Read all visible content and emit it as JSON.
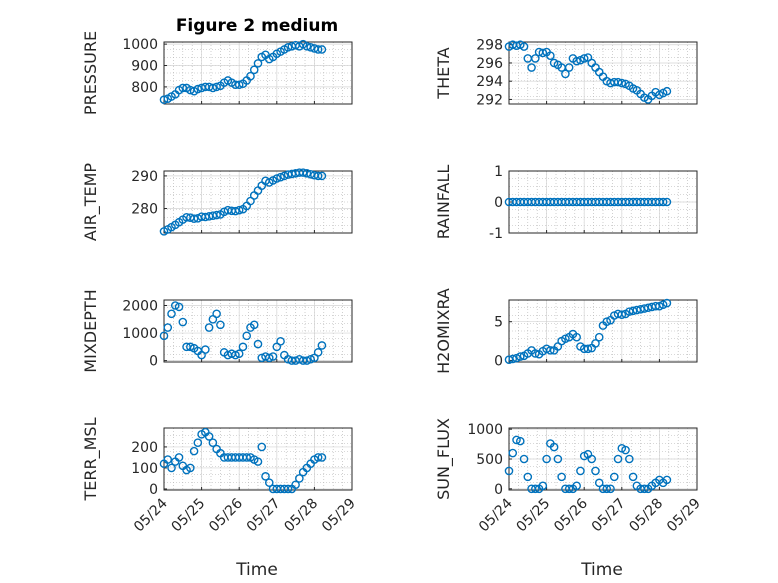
{
  "figure": {
    "title": "Figure 2 medium",
    "xlabel": "Time",
    "marker_color": "#0072BD",
    "grid": true
  },
  "chart_data": [
    {
      "type": "scatter",
      "ylabel": "PRESSURE",
      "ylim": [
        720,
        1010
      ],
      "yticks": [
        "800",
        "900",
        "1000"
      ],
      "ytick_values": [
        800,
        900,
        1000
      ],
      "xlim": [
        "05/24",
        "05/29"
      ],
      "xtick_labels": [],
      "x": [
        24.0,
        24.1,
        24.2,
        24.3,
        24.4,
        24.5,
        24.6,
        24.7,
        24.8,
        24.9,
        25.0,
        25.1,
        25.2,
        25.3,
        25.4,
        25.5,
        25.6,
        25.7,
        25.8,
        25.9,
        26.0,
        26.1,
        26.2,
        26.3,
        26.4,
        26.5,
        26.6,
        26.7,
        26.8,
        26.9,
        27.0,
        27.1,
        27.2,
        27.3,
        27.4,
        27.5,
        27.6,
        27.7,
        27.8,
        27.9,
        28.0,
        28.1,
        28.2
      ],
      "y": [
        740,
        745,
        755,
        765,
        785,
        795,
        795,
        785,
        780,
        790,
        795,
        800,
        800,
        795,
        800,
        805,
        820,
        830,
        820,
        810,
        810,
        815,
        830,
        850,
        880,
        910,
        940,
        950,
        930,
        940,
        955,
        965,
        975,
        985,
        990,
        995,
        990,
        1000,
        990,
        985,
        980,
        975,
        975
      ]
    },
    {
      "type": "scatter",
      "ylabel": "THETA",
      "ylim": [
        291.5,
        298.3
      ],
      "yticks": [
        "292",
        "294",
        "296",
        "298"
      ],
      "ytick_values": [
        292,
        294,
        296,
        298
      ],
      "xlim": [
        "05/24",
        "05/29"
      ],
      "xtick_labels": [],
      "x": [
        24.0,
        24.1,
        24.2,
        24.3,
        24.4,
        24.5,
        24.6,
        24.7,
        24.8,
        24.9,
        25.0,
        25.1,
        25.2,
        25.3,
        25.4,
        25.5,
        25.6,
        25.7,
        25.8,
        25.9,
        26.0,
        26.1,
        26.2,
        26.3,
        26.4,
        26.5,
        26.6,
        26.7,
        26.8,
        26.9,
        27.0,
        27.1,
        27.2,
        27.3,
        27.4,
        27.5,
        27.6,
        27.7,
        27.8,
        27.9,
        28.0,
        28.1,
        28.2
      ],
      "y": [
        297.8,
        298.0,
        297.9,
        298.0,
        297.8,
        296.5,
        295.5,
        296.5,
        297.2,
        297.1,
        297.2,
        296.8,
        296.0,
        295.8,
        295.5,
        294.8,
        295.5,
        296.5,
        296.2,
        296.3,
        296.5,
        296.6,
        296.0,
        295.5,
        295.0,
        294.5,
        294.0,
        293.8,
        293.9,
        293.9,
        293.8,
        293.7,
        293.5,
        293.2,
        293.0,
        292.6,
        292.2,
        292.0,
        292.4,
        292.8,
        292.5,
        292.7,
        292.9
      ]
    },
    {
      "type": "scatter",
      "ylabel": "AIR_TEMP",
      "ylim": [
        272.5,
        291.5
      ],
      "yticks": [
        "280",
        "290"
      ],
      "ytick_values": [
        280,
        290
      ],
      "xlim": [
        "05/24",
        "05/29"
      ],
      "xtick_labels": [],
      "x": [
        24.0,
        24.1,
        24.2,
        24.3,
        24.4,
        24.5,
        24.6,
        24.7,
        24.8,
        24.9,
        25.0,
        25.1,
        25.2,
        25.3,
        25.4,
        25.5,
        25.6,
        25.7,
        25.8,
        25.9,
        26.0,
        26.1,
        26.2,
        26.3,
        26.4,
        26.5,
        26.6,
        26.7,
        26.8,
        26.9,
        27.0,
        27.1,
        27.2,
        27.3,
        27.4,
        27.5,
        27.6,
        27.7,
        27.8,
        27.9,
        28.0,
        28.1,
        28.2
      ],
      "y": [
        273.0,
        273.6,
        274.3,
        275.0,
        275.8,
        276.6,
        277.3,
        277.2,
        276.9,
        277.0,
        277.5,
        277.4,
        277.6,
        277.8,
        278.0,
        278.2,
        279.0,
        279.5,
        279.3,
        279.2,
        279.5,
        279.8,
        280.8,
        282.3,
        284.0,
        285.5,
        287.0,
        288.5,
        288.0,
        288.6,
        289.2,
        289.6,
        290.0,
        290.4,
        290.6,
        290.8,
        291.0,
        291.0,
        290.8,
        290.5,
        290.2,
        290.0,
        290.0
      ]
    },
    {
      "type": "scatter",
      "ylabel": "RAINFALL",
      "ylim": [
        -1,
        1
      ],
      "yticks": [
        "-1",
        "0",
        "1"
      ],
      "ytick_values": [
        -1,
        0,
        1
      ],
      "xlim": [
        "05/24",
        "05/29"
      ],
      "xtick_labels": [],
      "x": [
        24.0,
        24.1,
        24.2,
        24.3,
        24.4,
        24.5,
        24.6,
        24.7,
        24.8,
        24.9,
        25.0,
        25.1,
        25.2,
        25.3,
        25.4,
        25.5,
        25.6,
        25.7,
        25.8,
        25.9,
        26.0,
        26.1,
        26.2,
        26.3,
        26.4,
        26.5,
        26.6,
        26.7,
        26.8,
        26.9,
        27.0,
        27.1,
        27.2,
        27.3,
        27.4,
        27.5,
        27.6,
        27.7,
        27.8,
        27.9,
        28.0,
        28.1,
        28.2
      ],
      "y": [
        0,
        0,
        0,
        0,
        0,
        0,
        0,
        0,
        0,
        0,
        0,
        0,
        0,
        0,
        0,
        0,
        0,
        0,
        0,
        0,
        0,
        0,
        0,
        0,
        0,
        0,
        0,
        0,
        0,
        0,
        0,
        0,
        0,
        0,
        0,
        0,
        0,
        0,
        0,
        0,
        0,
        0,
        0
      ]
    },
    {
      "type": "scatter",
      "ylabel": "MIXDEPTH",
      "ylim": [
        -50,
        2200
      ],
      "yticks": [
        "0",
        "1000",
        "2000"
      ],
      "ytick_values": [
        0,
        1000,
        2000
      ],
      "xlim": [
        "05/24",
        "05/29"
      ],
      "xtick_labels": [],
      "x": [
        24.0,
        24.1,
        24.2,
        24.3,
        24.4,
        24.5,
        24.6,
        24.7,
        24.8,
        24.9,
        25.0,
        25.1,
        25.2,
        25.3,
        25.4,
        25.5,
        25.6,
        25.7,
        25.8,
        25.9,
        26.0,
        26.1,
        26.2,
        26.3,
        26.4,
        26.5,
        26.6,
        26.7,
        26.8,
        26.9,
        27.0,
        27.1,
        27.2,
        27.3,
        27.4,
        27.5,
        27.6,
        27.7,
        27.8,
        27.9,
        28.0,
        28.1,
        28.2
      ],
      "y": [
        900,
        1200,
        1700,
        2000,
        1950,
        1400,
        500,
        500,
        450,
        350,
        200,
        400,
        1200,
        1500,
        1700,
        1300,
        300,
        200,
        250,
        200,
        250,
        500,
        900,
        1200,
        1300,
        600,
        100,
        150,
        100,
        150,
        500,
        700,
        200,
        50,
        0,
        0,
        50,
        0,
        0,
        50,
        100,
        300,
        550
      ]
    },
    {
      "type": "scatter",
      "ylabel": "H2OMIXRA",
      "ylim": [
        -0.2,
        7.8
      ],
      "yticks": [
        "0",
        "5"
      ],
      "ytick_values": [
        0,
        5
      ],
      "xlim": [
        "05/24",
        "05/29"
      ],
      "xtick_labels": [],
      "x": [
        24.0,
        24.1,
        24.2,
        24.3,
        24.4,
        24.5,
        24.6,
        24.7,
        24.8,
        24.9,
        25.0,
        25.1,
        25.2,
        25.3,
        25.4,
        25.5,
        25.6,
        25.7,
        25.8,
        25.9,
        26.0,
        26.1,
        26.2,
        26.3,
        26.4,
        26.5,
        26.6,
        26.7,
        26.8,
        26.9,
        27.0,
        27.1,
        27.2,
        27.3,
        27.4,
        27.5,
        27.6,
        27.7,
        27.8,
        27.9,
        28.0,
        28.1,
        28.2
      ],
      "y": [
        0.1,
        0.2,
        0.3,
        0.5,
        0.6,
        0.9,
        1.3,
        0.9,
        0.8,
        1.2,
        1.5,
        1.3,
        1.3,
        1.8,
        2.5,
        2.8,
        3.0,
        3.4,
        3.0,
        1.8,
        1.5,
        1.5,
        1.6,
        2.2,
        3.0,
        4.5,
        5.0,
        5.2,
        5.8,
        6.0,
        5.9,
        6.0,
        6.3,
        6.4,
        6.5,
        6.6,
        6.7,
        6.8,
        6.9,
        7.0,
        7.0,
        7.2,
        7.4
      ]
    },
    {
      "type": "scatter",
      "ylabel": "TERR_MSL",
      "ylim": [
        -5,
        290
      ],
      "yticks": [
        "0",
        "100",
        "200"
      ],
      "ytick_values": [
        0,
        100,
        200
      ],
      "xlim": [
        "05/24",
        "05/29"
      ],
      "xtick_labels": [
        "05/24",
        "05/25",
        "05/26",
        "05/27",
        "05/28",
        "05/29"
      ],
      "x": [
        24.0,
        24.1,
        24.2,
        24.3,
        24.4,
        24.5,
        24.6,
        24.7,
        24.8,
        24.9,
        25.0,
        25.1,
        25.2,
        25.3,
        25.4,
        25.5,
        25.6,
        25.7,
        25.8,
        25.9,
        26.0,
        26.1,
        26.2,
        26.3,
        26.4,
        26.5,
        26.6,
        26.7,
        26.8,
        26.9,
        27.0,
        27.1,
        27.2,
        27.3,
        27.4,
        27.5,
        27.6,
        27.7,
        27.8,
        27.9,
        28.0,
        28.1,
        28.2
      ],
      "y": [
        120,
        140,
        100,
        130,
        150,
        110,
        90,
        100,
        180,
        220,
        260,
        270,
        250,
        220,
        190,
        170,
        150,
        150,
        150,
        150,
        150,
        150,
        150,
        150,
        140,
        130,
        200,
        60,
        30,
        0,
        0,
        0,
        0,
        0,
        0,
        20,
        50,
        80,
        100,
        120,
        140,
        150,
        150
      ]
    },
    {
      "type": "scatter",
      "ylabel": "SUN_FLUX",
      "ylim": [
        -20,
        1020
      ],
      "yticks": [
        "0",
        "500",
        "1000"
      ],
      "ytick_values": [
        0,
        500,
        1000
      ],
      "xlim": [
        "05/24",
        "05/29"
      ],
      "xtick_labels": [
        "05/24",
        "05/25",
        "05/26",
        "05/27",
        "05/28",
        "05/29"
      ],
      "x": [
        24.0,
        24.1,
        24.2,
        24.3,
        24.4,
        24.5,
        24.6,
        24.7,
        24.8,
        24.9,
        25.0,
        25.1,
        25.2,
        25.3,
        25.4,
        25.5,
        25.6,
        25.7,
        25.8,
        25.9,
        26.0,
        26.1,
        26.2,
        26.3,
        26.4,
        26.5,
        26.6,
        26.7,
        26.8,
        26.9,
        27.0,
        27.1,
        27.2,
        27.3,
        27.4,
        27.5,
        27.6,
        27.7,
        27.8,
        27.9,
        28.0,
        28.1,
        28.2
      ],
      "y": [
        300,
        600,
        820,
        800,
        500,
        200,
        0,
        0,
        0,
        50,
        500,
        760,
        700,
        500,
        200,
        0,
        0,
        0,
        50,
        300,
        550,
        580,
        500,
        300,
        100,
        0,
        0,
        0,
        200,
        500,
        680,
        650,
        500,
        200,
        50,
        0,
        0,
        0,
        50,
        100,
        150,
        100,
        150
      ]
    }
  ]
}
